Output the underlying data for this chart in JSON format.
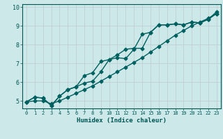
{
  "xlabel": "Humidex (Indice chaleur)",
  "ylabel": "",
  "bg_color": "#cce8e8",
  "grid_color": "#c0d0d0",
  "line_color": "#006060",
  "xlim": [
    -0.5,
    23.5
  ],
  "ylim": [
    4.6,
    10.15
  ],
  "xticks": [
    0,
    1,
    2,
    3,
    4,
    5,
    6,
    7,
    8,
    9,
    10,
    11,
    12,
    13,
    14,
    15,
    16,
    17,
    18,
    19,
    20,
    21,
    22,
    23
  ],
  "yticks": [
    5,
    6,
    7,
    8,
    9,
    10
  ],
  "series": [
    [
      4.95,
      5.2,
      5.15,
      4.75,
      5.25,
      5.6,
      5.75,
      5.95,
      6.05,
      6.55,
      7.2,
      7.3,
      7.25,
      7.75,
      8.55,
      8.65,
      9.05,
      9.05,
      9.1,
      9.05,
      9.2,
      9.15,
      9.35,
      9.65
    ],
    [
      4.95,
      5.2,
      5.15,
      4.75,
      5.25,
      5.6,
      5.75,
      6.35,
      6.5,
      7.1,
      7.2,
      7.45,
      7.75,
      7.8,
      7.8,
      8.65,
      9.05,
      9.05,
      9.1,
      9.05,
      9.2,
      9.15,
      9.35,
      9.75
    ],
    [
      4.95,
      5.0,
      5.0,
      4.85,
      5.0,
      5.2,
      5.4,
      5.6,
      5.8,
      6.05,
      6.3,
      6.55,
      6.8,
      7.05,
      7.3,
      7.6,
      7.9,
      8.2,
      8.5,
      8.75,
      9.0,
      9.2,
      9.4,
      9.65
    ]
  ],
  "marker": "D",
  "markersize": 2.5,
  "linewidth": 1.0
}
